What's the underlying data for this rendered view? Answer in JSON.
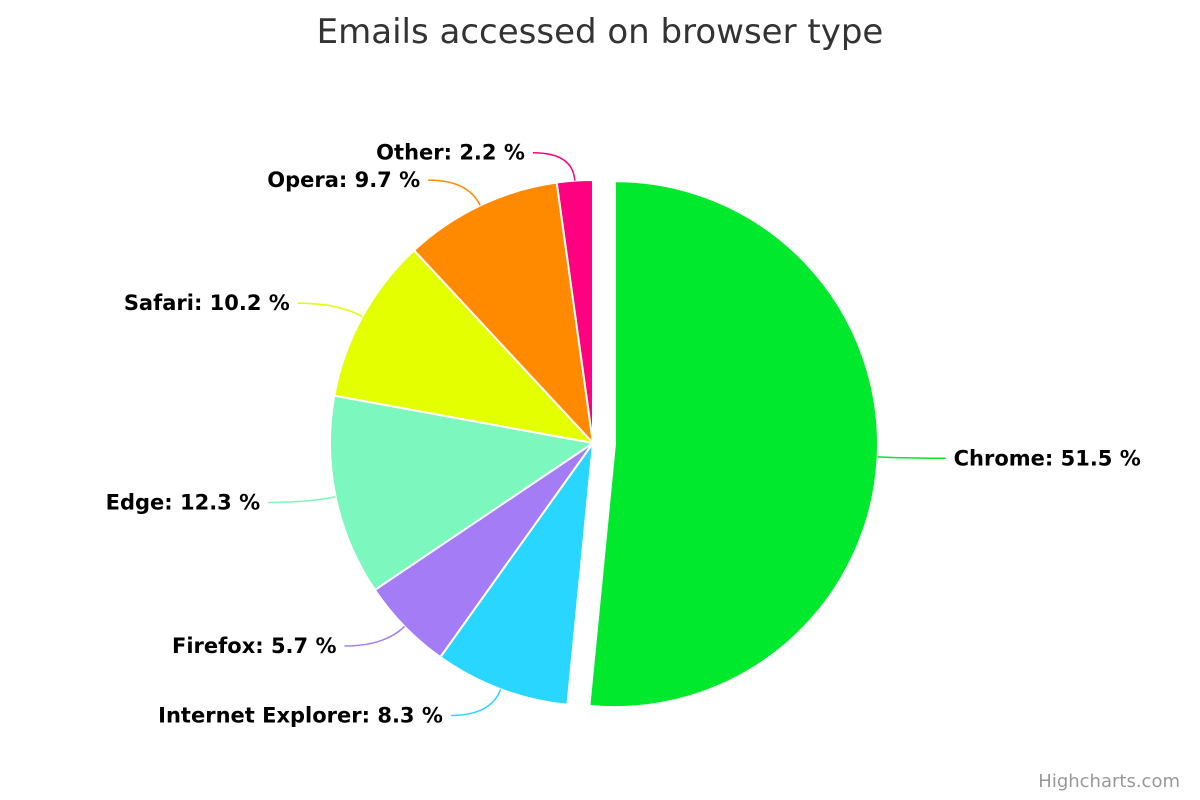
{
  "chart_data": {
    "type": "pie",
    "title": "Emails accessed on browser type",
    "value_suffix": " %",
    "slices": [
      {
        "name": "Chrome",
        "value": 51.5,
        "color": "#00e92c",
        "sliced": true
      },
      {
        "name": "Internet Explorer",
        "value": 8.3,
        "color": "#29d6ff"
      },
      {
        "name": "Firefox",
        "value": 5.7,
        "color": "#a47cf5"
      },
      {
        "name": "Edge",
        "value": 12.3,
        "color": "#7cf7bd"
      },
      {
        "name": "Safari",
        "value": 10.2,
        "color": "#e3ff00"
      },
      {
        "name": "Opera",
        "value": 9.7,
        "color": "#ff8a00"
      },
      {
        "name": "Other",
        "value": 2.2,
        "color": "#ff0080"
      }
    ]
  },
  "credits": {
    "text": "Highcharts.com"
  }
}
